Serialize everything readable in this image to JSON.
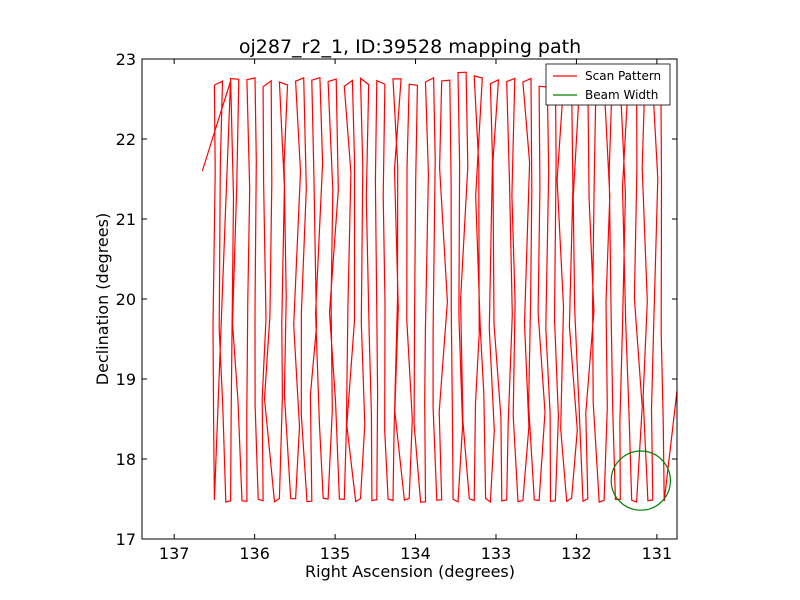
{
  "chart_data": {
    "type": "line",
    "title": "oj287_r2_1, ID:39528 mapping path",
    "xlabel": "Right Ascension (degrees)",
    "ylabel": "Declination (degrees)",
    "xlim": [
      137.4,
      130.75
    ],
    "ylim": [
      17,
      23
    ],
    "x_ticks": [
      137,
      136,
      135,
      134,
      133,
      132,
      131
    ],
    "y_ticks": [
      17,
      18,
      19,
      20,
      21,
      22,
      23
    ],
    "x_tick_labels": [
      "137",
      "136",
      "135",
      "134",
      "133",
      "132",
      "131"
    ],
    "y_tick_labels": [
      "17",
      "18",
      "19",
      "20",
      "21",
      "22",
      "23"
    ],
    "legend_position": "top-right",
    "series": [
      {
        "name": "Scan Pattern",
        "color": "#ff0000",
        "kind": "zigzag-scan",
        "ra_range": [
          136.65,
          130.75
        ],
        "dec_range": [
          17.3,
          22.9
        ],
        "dec_bottom": 17.48,
        "dec_top": 22.72,
        "scan_count": 56,
        "breakpoints_dec": [
          21.5,
          19.8,
          18.6
        ]
      },
      {
        "name": "Beam Width",
        "color": "#008000",
        "kind": "circle",
        "center": [
          131.2,
          17.73
        ],
        "radius_dec": 0.37
      }
    ]
  }
}
